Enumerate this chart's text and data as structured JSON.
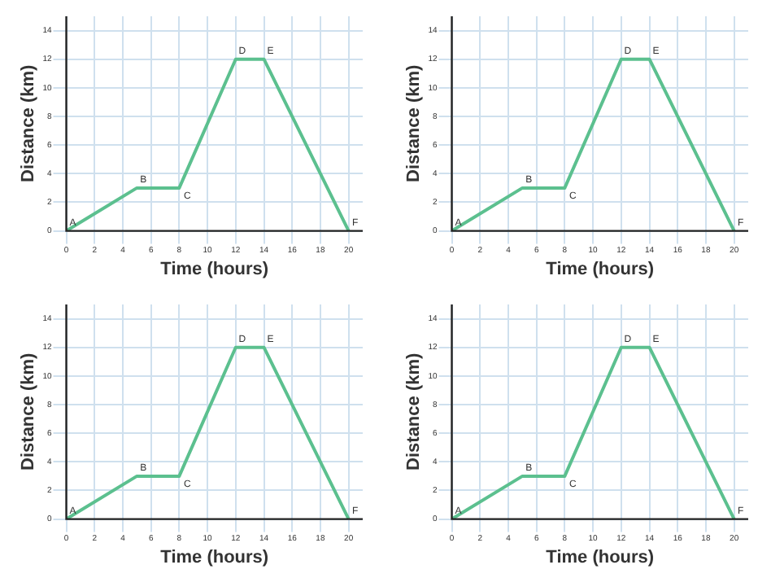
{
  "chart_data": [
    {
      "type": "line",
      "xlabel": "Time (hours)",
      "ylabel": "Distance (km)",
      "x": [
        0,
        5,
        8,
        12,
        14,
        20
      ],
      "series": [
        {
          "color": "#5cc08f",
          "values": [
            0,
            3,
            3,
            12,
            12,
            0
          ]
        }
      ],
      "xlim": [
        0,
        21
      ],
      "ylim": [
        0,
        15
      ],
      "xticks": [
        0,
        2,
        4,
        6,
        8,
        10,
        12,
        14,
        16,
        18,
        20
      ],
      "yticks": [
        0,
        2,
        4,
        6,
        8,
        10,
        12,
        14
      ],
      "grid": true,
      "legend": false,
      "marker": "none",
      "line_style": "solid",
      "annotations": [
        {
          "text": "A",
          "x": 0,
          "y": 0
        },
        {
          "text": "B",
          "x": 5,
          "y": 3
        },
        {
          "text": "C",
          "x": 8,
          "y": 3
        },
        {
          "text": "D",
          "x": 12,
          "y": 12
        },
        {
          "text": "E",
          "x": 14,
          "y": 12
        },
        {
          "text": "F",
          "x": 20,
          "y": 0
        }
      ]
    },
    {
      "type": "line",
      "xlabel": "Time (hours)",
      "ylabel": "Distance (km)",
      "x": [
        0,
        5,
        8,
        12,
        14,
        20
      ],
      "series": [
        {
          "color": "#5cc08f",
          "values": [
            0,
            3,
            3,
            12,
            12,
            0
          ]
        }
      ],
      "xlim": [
        0,
        21
      ],
      "ylim": [
        0,
        15
      ],
      "xticks": [
        0,
        2,
        4,
        6,
        8,
        10,
        12,
        14,
        16,
        18,
        20
      ],
      "yticks": [
        0,
        2,
        4,
        6,
        8,
        10,
        12,
        14
      ],
      "grid": true,
      "legend": false,
      "marker": "none",
      "line_style": "solid",
      "annotations": [
        {
          "text": "A",
          "x": 0,
          "y": 0
        },
        {
          "text": "B",
          "x": 5,
          "y": 3
        },
        {
          "text": "C",
          "x": 8,
          "y": 3
        },
        {
          "text": "D",
          "x": 12,
          "y": 12
        },
        {
          "text": "E",
          "x": 14,
          "y": 12
        },
        {
          "text": "F",
          "x": 20,
          "y": 0
        }
      ]
    },
    {
      "type": "line",
      "xlabel": "Time (hours)",
      "ylabel": "Distance (km)",
      "x": [
        0,
        5,
        8,
        12,
        14,
        20
      ],
      "series": [
        {
          "color": "#5cc08f",
          "values": [
            0,
            3,
            3,
            12,
            12,
            0
          ]
        }
      ],
      "xlim": [
        0,
        21
      ],
      "ylim": [
        0,
        15
      ],
      "xticks": [
        0,
        2,
        4,
        6,
        8,
        10,
        12,
        14,
        16,
        18,
        20
      ],
      "yticks": [
        0,
        2,
        4,
        6,
        8,
        10,
        12,
        14
      ],
      "grid": true,
      "legend": false,
      "marker": "none",
      "line_style": "solid",
      "annotations": [
        {
          "text": "A",
          "x": 0,
          "y": 0
        },
        {
          "text": "B",
          "x": 5,
          "y": 3
        },
        {
          "text": "C",
          "x": 8,
          "y": 3
        },
        {
          "text": "D",
          "x": 12,
          "y": 12
        },
        {
          "text": "E",
          "x": 14,
          "y": 12
        },
        {
          "text": "F",
          "x": 20,
          "y": 0
        }
      ]
    },
    {
      "type": "line",
      "xlabel": "Time (hours)",
      "ylabel": "Distance (km)",
      "x": [
        0,
        5,
        8,
        12,
        14,
        20
      ],
      "series": [
        {
          "color": "#5cc08f",
          "values": [
            0,
            3,
            3,
            12,
            12,
            0
          ]
        }
      ],
      "xlim": [
        0,
        21
      ],
      "ylim": [
        0,
        15
      ],
      "xticks": [
        0,
        2,
        4,
        6,
        8,
        10,
        12,
        14,
        16,
        18,
        20
      ],
      "yticks": [
        0,
        2,
        4,
        6,
        8,
        10,
        12,
        14
      ],
      "grid": true,
      "legend": false,
      "marker": "none",
      "line_style": "solid",
      "annotations": [
        {
          "text": "A",
          "x": 0,
          "y": 0
        },
        {
          "text": "B",
          "x": 5,
          "y": 3
        },
        {
          "text": "C",
          "x": 8,
          "y": 3
        },
        {
          "text": "D",
          "x": 12,
          "y": 12
        },
        {
          "text": "E",
          "x": 14,
          "y": 12
        },
        {
          "text": "F",
          "x": 20,
          "y": 0
        }
      ]
    }
  ]
}
